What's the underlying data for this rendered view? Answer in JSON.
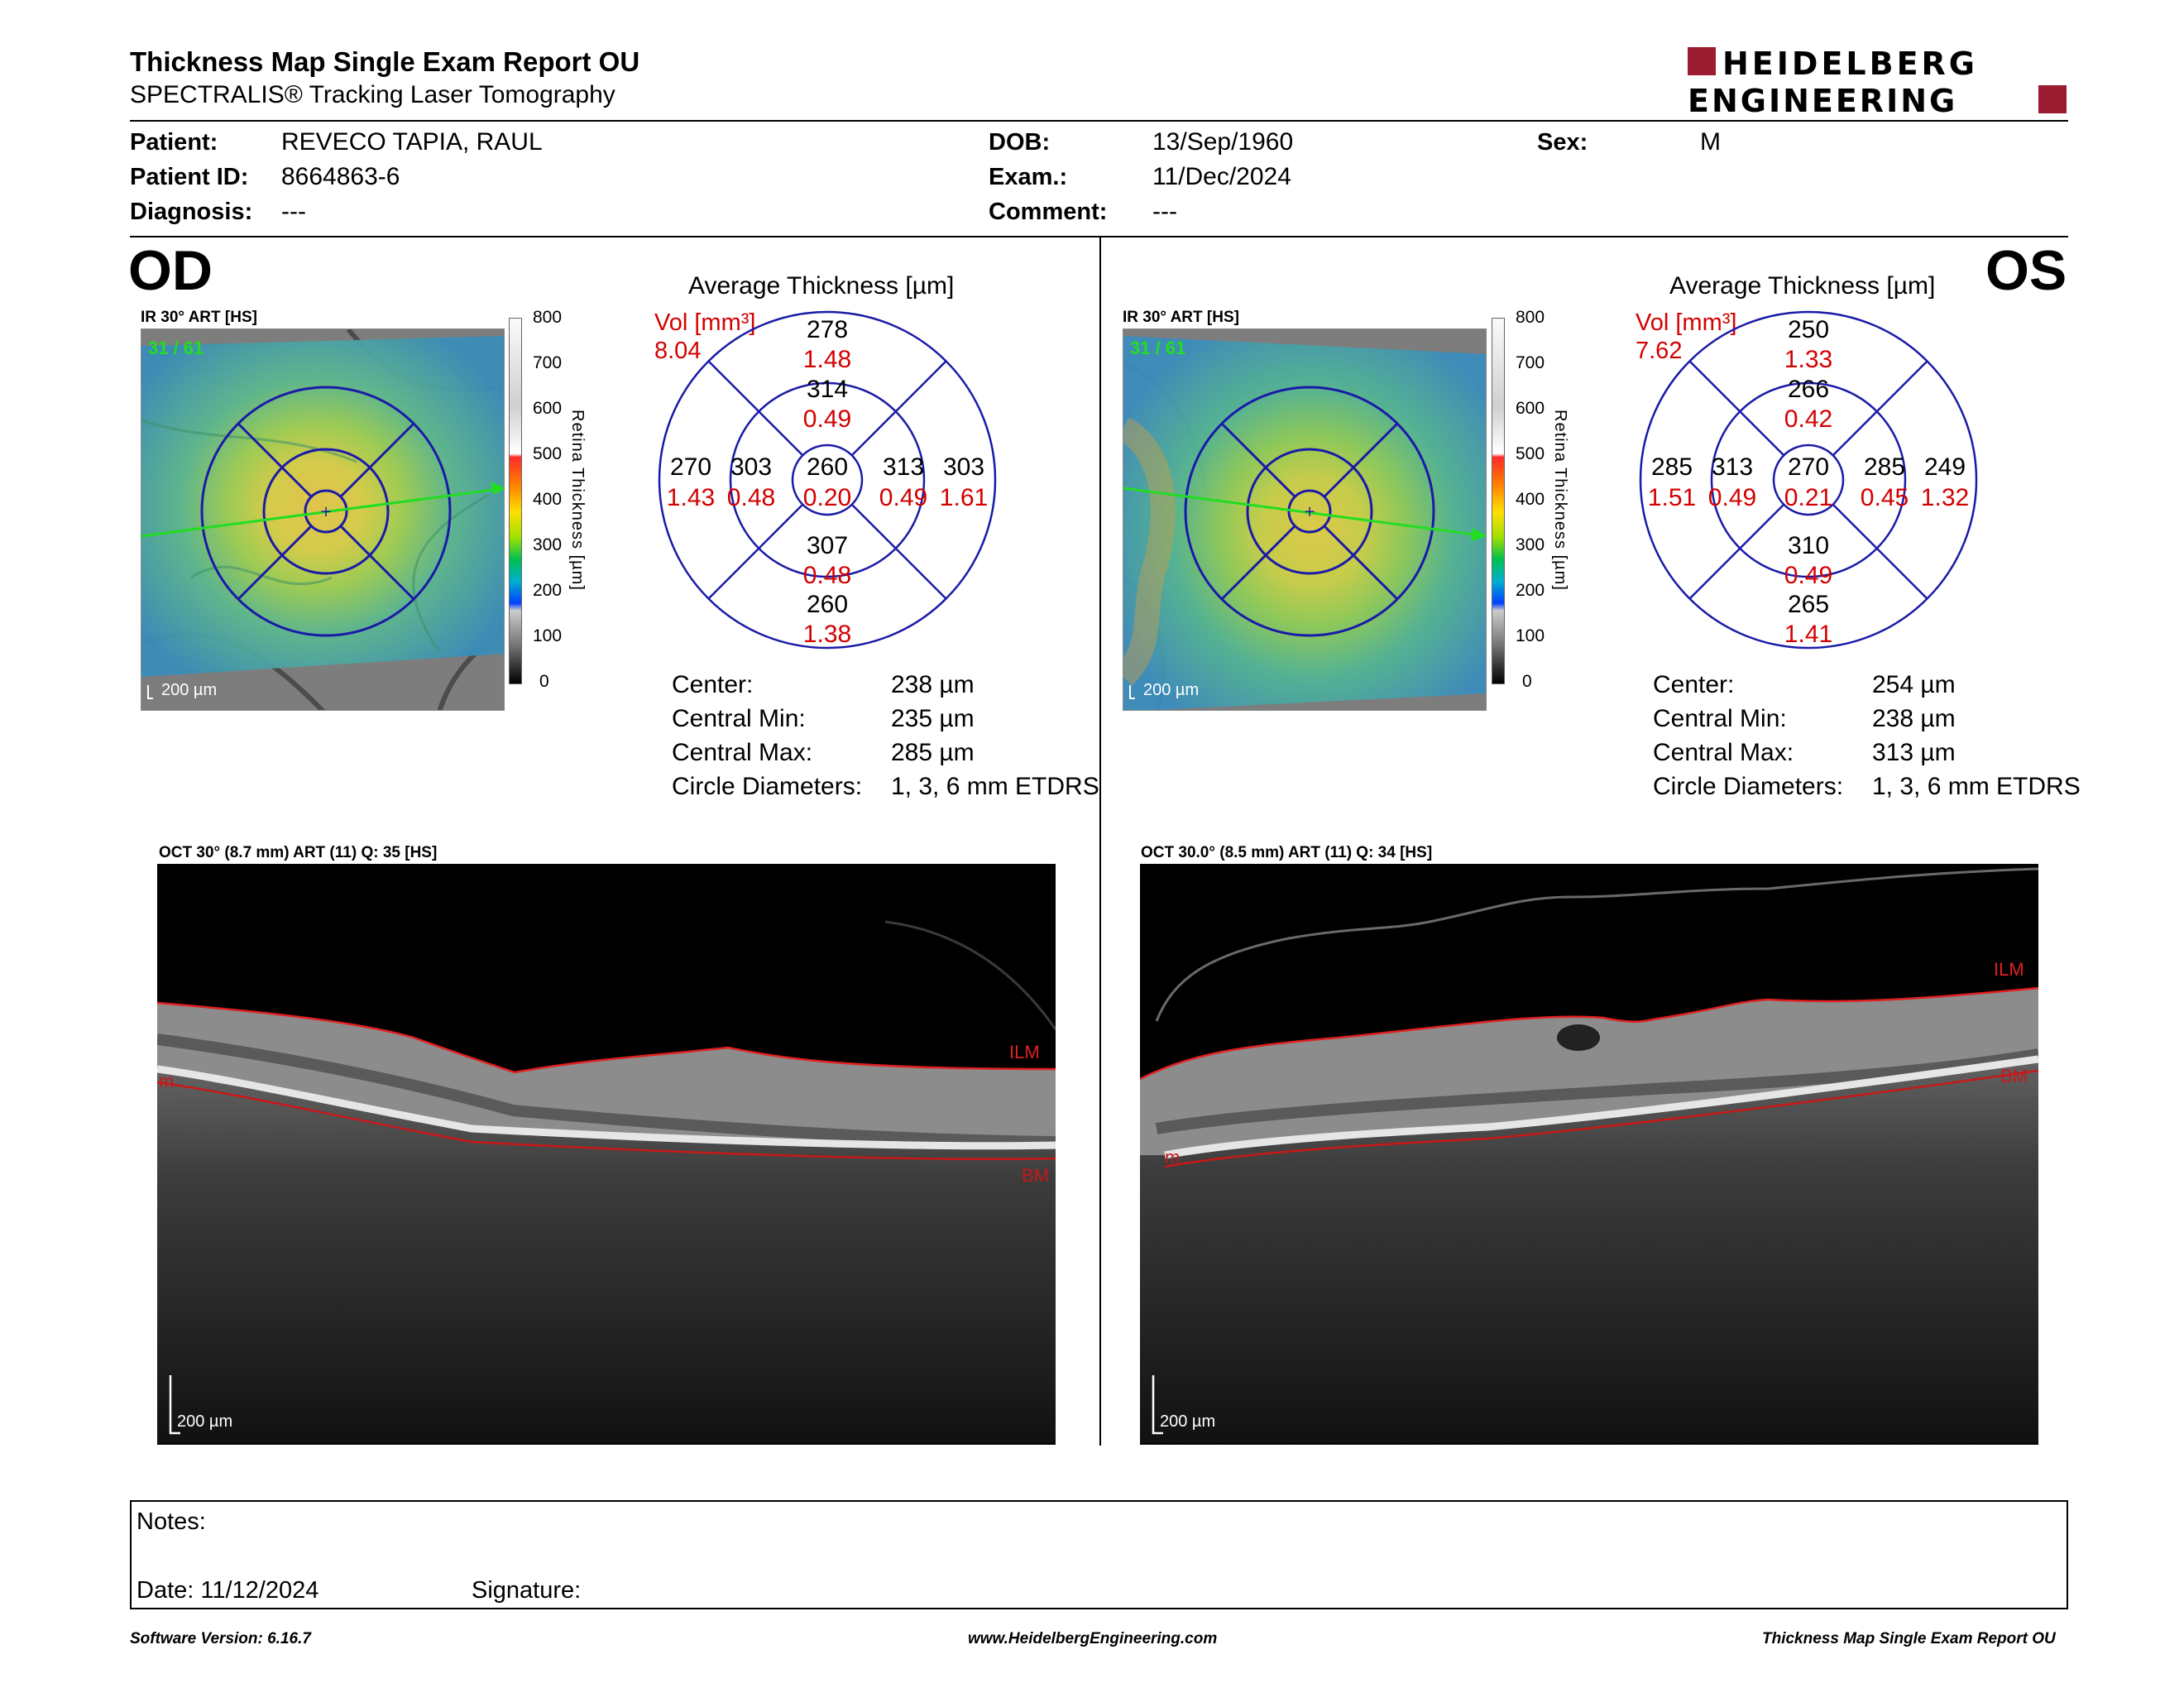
{
  "header": {
    "title": "Thickness Map Single Exam Report OU",
    "subtitle": "SPECTRALIS® Tracking Laser Tomography",
    "logo_line1": "HEIDELBERG",
    "logo_line2": "ENGINEERING"
  },
  "patient": {
    "patient_label": "Patient:",
    "patient_value": "REVECO TAPIA, RAUL",
    "id_label": "Patient ID:",
    "id_value": "8664863-6",
    "diagnosis_label": "Diagnosis:",
    "diagnosis_value": "---",
    "dob_label": "DOB:",
    "dob_value": "13/Sep/1960",
    "exam_label": "Exam.:",
    "exam_value": "11/Dec/2024",
    "comment_label": "Comment:",
    "comment_value": "---",
    "sex_label": "Sex:",
    "sex_value": "M"
  },
  "colorbar": {
    "ticks": [
      "800",
      "700",
      "600",
      "500",
      "400",
      "300",
      "200",
      "100",
      "0"
    ],
    "axis_label": "Retina Thickness [µm]"
  },
  "od": {
    "eye": "OD",
    "map_title": "IR 30° ART [HS]",
    "frames": "31 / 61",
    "scale": "200 µm",
    "avg_title": "Average Thickness [µm]",
    "vol_label": "Vol [mm³]",
    "vol_total": "8.04",
    "etdrs": {
      "center_t": "260",
      "center_v": "0.20",
      "inner_top_t": "314",
      "inner_top_v": "0.49",
      "inner_bottom_t": "307",
      "inner_bottom_v": "0.48",
      "inner_left_t": "303",
      "inner_left_v": "0.48",
      "inner_right_t": "313",
      "inner_right_v": "0.49",
      "outer_top_t": "278",
      "outer_top_v": "1.48",
      "outer_bottom_t": "260",
      "outer_bottom_v": "1.38",
      "outer_left_t": "270",
      "outer_left_v": "1.43",
      "outer_right_t": "303",
      "outer_right_v": "1.61"
    },
    "stats": {
      "center_label": "Center:",
      "center_value": "238 µm",
      "min_label": "Central Min:",
      "min_value": "235 µm",
      "max_label": "Central Max:",
      "max_value": "285 µm",
      "diam_label": "Circle Diameters:",
      "diam_value": "1, 3, 6 mm ETDRS"
    },
    "oct_title": "OCT 30° (8.7 mm) ART (11) Q: 35 [HS]",
    "oct_scale": "200 µm",
    "ilm": "ILM",
    "bm": "BM",
    "m": "m"
  },
  "os": {
    "eye": "OS",
    "map_title": "IR 30° ART [HS]",
    "frames": "31 / 61",
    "scale": "200 µm",
    "avg_title": "Average Thickness [µm]",
    "vol_label": "Vol [mm³]",
    "vol_total": "7.62",
    "etdrs": {
      "center_t": "270",
      "center_v": "0.21",
      "inner_top_t": "266",
      "inner_top_v": "0.42",
      "inner_bottom_t": "310",
      "inner_bottom_v": "0.49",
      "inner_left_t": "313",
      "inner_left_v": "0.49",
      "inner_right_t": "285",
      "inner_right_v": "0.45",
      "outer_top_t": "250",
      "outer_top_v": "1.33",
      "outer_bottom_t": "265",
      "outer_bottom_v": "1.41",
      "outer_left_t": "285",
      "outer_left_v": "1.51",
      "outer_right_t": "249",
      "outer_right_v": "1.32"
    },
    "stats": {
      "center_label": "Center:",
      "center_value": "254 µm",
      "min_label": "Central Min:",
      "min_value": "238 µm",
      "max_label": "Central Max:",
      "max_value": "313 µm",
      "diam_label": "Circle Diameters:",
      "diam_value": "1, 3, 6 mm ETDRS"
    },
    "oct_title": "OCT 30.0° (8.5 mm) ART (11) Q: 34 [HS]",
    "oct_scale": "200 µm",
    "ilm": "ILM",
    "bm": "BM",
    "m": "m"
  },
  "notes": {
    "notes_label": "Notes:",
    "date_label": "Date: 11/12/2024",
    "signature_label": "Signature:"
  },
  "footer": {
    "software": "Software Version: 6.16.7",
    "website": "www.HeidelbergEngineering.com",
    "report": "Thickness Map Single Exam Report OU"
  },
  "colors": {
    "etdrs_grid": "#1a1aa8",
    "volume_red": "#d40000",
    "logo_red": "#9b1b30",
    "scan_line": "#22dd22"
  }
}
